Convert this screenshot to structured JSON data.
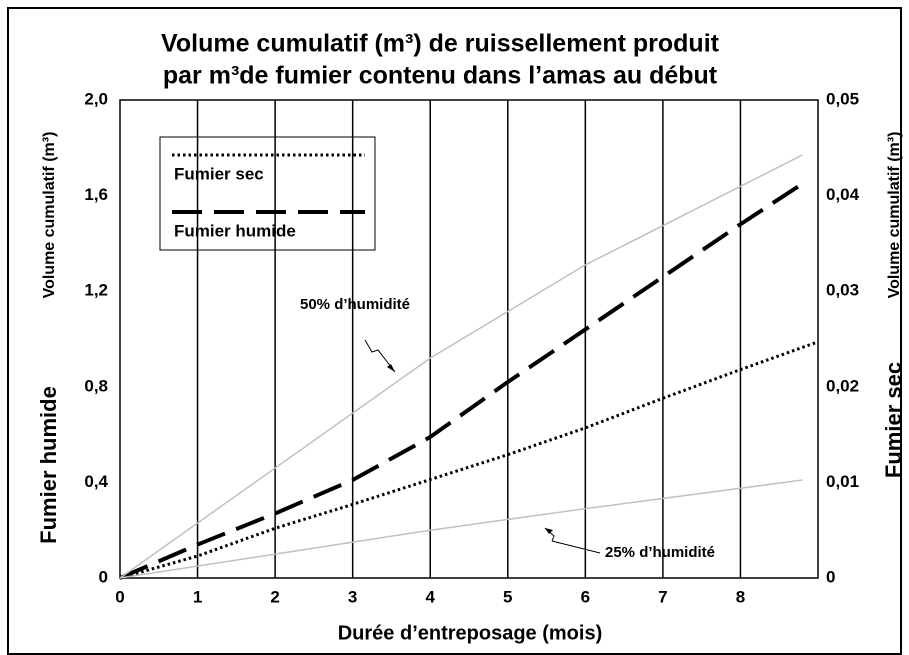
{
  "chart_data": {
    "type": "line",
    "title": [
      "Volume cumulatif (m³) de ruissellement produit",
      "par m³de fumier contenu dans l’amas au début"
    ],
    "xlabel": "Durée d’entreposage  (mois)",
    "ylabel": [
      "Fumier humide",
      "Volume cumulatif (m³)"
    ],
    "y2label": [
      "Fumier sec",
      "Volume cumulatif  (m³)"
    ],
    "xlim": [
      0,
      9
    ],
    "xticks": [
      0,
      1,
      2,
      3,
      4,
      5,
      6,
      7,
      8
    ],
    "ylim": [
      0,
      2.0
    ],
    "yticks": [
      0,
      {
        "value": 0.4,
        "label": "0,4"
      },
      {
        "value": 0.8,
        "label": "0,8"
      },
      {
        "value": 1.2,
        "label": "1,2"
      },
      {
        "value": 1.6,
        "label": "1,6"
      },
      {
        "value": 2.0,
        "label": "2,0"
      }
    ],
    "y2lim": [
      0,
      0.05
    ],
    "y2ticks": [
      0,
      {
        "value": 0.01,
        "label": "0,01"
      },
      {
        "value": 0.02,
        "label": "0,02"
      },
      {
        "value": 0.03,
        "label": "0,03"
      },
      {
        "value": 0.04,
        "label": "0,04"
      },
      {
        "value": 0.05,
        "label": "0,05"
      }
    ],
    "grid": "x",
    "legend": "upper left",
    "series": [
      {
        "name": "Fumier sec",
        "color": "#000000",
        "style": "dotted",
        "axis": "y2",
        "legend": true,
        "x": [
          0,
          1,
          2,
          3,
          4,
          5,
          6,
          7,
          8,
          9
        ],
        "values": [
          0,
          0.0023,
          0.0052,
          0.0077,
          0.0103,
          0.0129,
          0.0157,
          0.0188,
          0.0218,
          0.0247
        ]
      },
      {
        "name": "Fumier humide",
        "color": "#000000",
        "style": "dashed",
        "legend": true,
        "x": [
          0,
          1,
          2,
          3,
          4,
          5,
          6,
          7,
          8,
          8.8
        ],
        "values": [
          0,
          0.14,
          0.27,
          0.41,
          0.59,
          0.82,
          1.04,
          1.26,
          1.48,
          1.65
        ]
      },
      {
        "name": "50% d’humidité",
        "color": "#c0c0c0",
        "style": "solid",
        "legend": false,
        "x": [
          0,
          2,
          4,
          6,
          8.8
        ],
        "values": [
          0,
          0.46,
          0.92,
          1.31,
          1.77
        ]
      },
      {
        "name": "25% d’humidité",
        "color": "#c0c0c0",
        "style": "solid",
        "legend": false,
        "x": [
          0,
          2,
          4,
          6,
          8.8
        ],
        "values": [
          0,
          0.1,
          0.2,
          0.29,
          0.41
        ]
      }
    ]
  }
}
